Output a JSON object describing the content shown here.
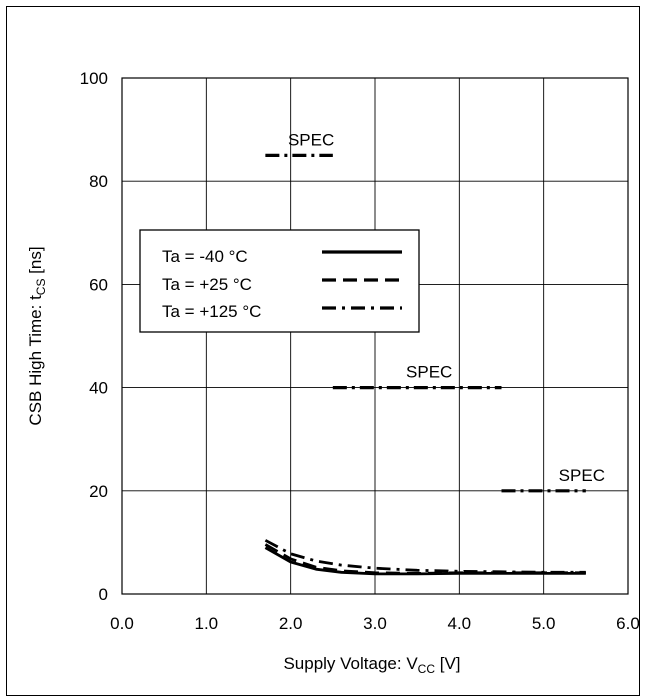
{
  "chart_data": {
    "type": "line",
    "title": "",
    "xlabel": {
      "main": "Supply Voltage: V",
      "sub": "CC",
      "unit": " [V]"
    },
    "ylabel": {
      "main": "CSB High Time: t",
      "sub": "CS",
      "unit": " [ns]"
    },
    "xlim": [
      0.0,
      6.0
    ],
    "ylim": [
      0,
      100
    ],
    "xticks": [
      0.0,
      1.0,
      2.0,
      3.0,
      4.0,
      5.0,
      6.0
    ],
    "xtick_labels": [
      "0.0",
      "1.0",
      "2.0",
      "3.0",
      "4.0",
      "5.0",
      "6.0"
    ],
    "yticks": [
      0,
      20,
      40,
      60,
      80,
      100
    ],
    "ytick_labels": [
      "0",
      "20",
      "40",
      "60",
      "80",
      "100"
    ],
    "grid": true,
    "legend_position": "left-middle",
    "series": [
      {
        "name": "Ta = -40 °C",
        "style": "solid",
        "x": [
          1.7,
          2.0,
          2.3,
          2.6,
          3.0,
          3.5,
          4.0,
          4.5,
          5.0,
          5.5
        ],
        "y": [
          9.0,
          6.2,
          4.8,
          4.2,
          3.9,
          3.9,
          4.0,
          4.0,
          4.0,
          4.0
        ]
      },
      {
        "name": "Ta = +25 °C",
        "style": "dashed",
        "x": [
          1.7,
          2.0,
          2.3,
          2.6,
          3.0,
          3.5,
          4.0,
          4.5,
          5.0,
          5.5
        ],
        "y": [
          9.6,
          6.8,
          5.2,
          4.5,
          4.1,
          4.0,
          4.1,
          4.1,
          4.1,
          4.1
        ]
      },
      {
        "name": "Ta = +125 °C",
        "style": "dashdot",
        "x": [
          1.7,
          2.0,
          2.3,
          2.6,
          3.0,
          3.5,
          4.0,
          4.5,
          5.0,
          5.5
        ],
        "y": [
          10.4,
          7.8,
          6.4,
          5.6,
          5.0,
          4.6,
          4.4,
          4.3,
          4.2,
          4.2
        ]
      }
    ],
    "spec_lines": [
      {
        "label": "SPEC",
        "x": [
          1.7,
          2.5
        ],
        "y": 85
      },
      {
        "label": "SPEC",
        "x": [
          2.5,
          4.5
        ],
        "y": 40
      },
      {
        "label": "SPEC",
        "x": [
          4.5,
          5.5
        ],
        "y": 20
      }
    ]
  }
}
